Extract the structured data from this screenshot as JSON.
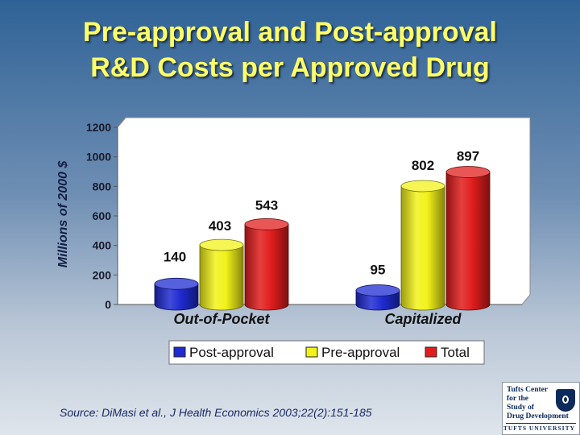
{
  "slide": {
    "title_line1": "Pre-approval and Post-approval",
    "title_line2": "R&D Costs per Approved Drug",
    "source": "Source: DiMasi et al., J Health Economics 2003;22(2):151-185",
    "logo": {
      "lines": [
        "Tufts Center",
        "for the",
        "Study of",
        "Drug Development"
      ],
      "university": "TUFTS UNIVERSITY"
    }
  },
  "colors": {
    "plot_bg": "#ffffff",
    "post_approval": "#1f2bd1",
    "pre_approval": "#f2f21a",
    "total": "#e11d1d",
    "title": "#ffff66"
  },
  "chart_data": {
    "type": "bar",
    "style": "3d-cylinder",
    "title": "",
    "xlabel": "",
    "ylabel": "Millions of 2000 $",
    "ylim": [
      0,
      1200
    ],
    "yticks": [
      0,
      200,
      400,
      600,
      800,
      1000,
      1200
    ],
    "grid": false,
    "legend_position": "bottom",
    "categories": [
      "Out-of-Pocket",
      "Capitalized"
    ],
    "series": [
      {
        "name": "Post-approval",
        "values": [
          140,
          95
        ],
        "labels": [
          "140",
          "95"
        ],
        "color": "#1f2bd1"
      },
      {
        "name": "Pre-approval",
        "values": [
          403,
          802
        ],
        "labels": [
          "403",
          "802"
        ],
        "color": "#f2f21a"
      },
      {
        "name": "Total",
        "values": [
          543,
          897
        ],
        "labels": [
          "543",
          "897"
        ],
        "color": "#e11d1d"
      }
    ]
  }
}
